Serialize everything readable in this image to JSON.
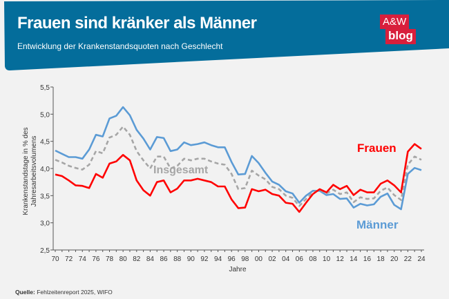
{
  "header": {
    "title": "Frauen sind kränker als Männer",
    "subtitle": "Entwicklung der Krankenstandsquoten nach Geschlecht",
    "logo_top": "A&W",
    "logo_bottom": "blog"
  },
  "footer": {
    "source_label": "Quelle:",
    "source_text": "Fehlzeitenreport 2025, WIFO"
  },
  "colors": {
    "banner": "#046d9b",
    "frauen": "#ff0000",
    "maenner": "#5b9bd5",
    "insgesamt": "#a6a6a6",
    "logo": "#d81f3c"
  },
  "chart_data": {
    "type": "line",
    "title": "Frauen sind kränker als Männer",
    "xlabel": "Jahre",
    "ylabel": [
      "Krankenstandstage in % des",
      "Jahresarbeitsvolumens"
    ],
    "ylim": [
      2.5,
      5.5
    ],
    "xlim": [
      1970,
      2024
    ],
    "yticks": [
      "2,5",
      "3,0",
      "3,5",
      "4,0",
      "4,5",
      "5,0",
      "5,5"
    ],
    "ytick_values": [
      2.5,
      3.0,
      3.5,
      4.0,
      4.5,
      5.0,
      5.5
    ],
    "xticks": [
      "70",
      "72",
      "74",
      "76",
      "78",
      "80",
      "82",
      "84",
      "86",
      "88",
      "90",
      "92",
      "94",
      "96",
      "98",
      "00",
      "02",
      "04",
      "06",
      "08",
      "10",
      "12",
      "14",
      "16",
      "18",
      "20",
      "22",
      "24"
    ],
    "x": [
      1970,
      1971,
      1972,
      1973,
      1974,
      1975,
      1976,
      1977,
      1978,
      1979,
      1980,
      1981,
      1982,
      1983,
      1984,
      1985,
      1986,
      1987,
      1988,
      1989,
      1990,
      1991,
      1992,
      1993,
      1994,
      1995,
      1996,
      1997,
      1998,
      1999,
      2000,
      2001,
      2002,
      2003,
      2004,
      2005,
      2006,
      2007,
      2008,
      2009,
      2010,
      2011,
      2012,
      2013,
      2014,
      2015,
      2016,
      2017,
      2018,
      2019,
      2020,
      2021,
      2022,
      2023,
      2024
    ],
    "series": [
      {
        "name": "Männer",
        "key": "maenner",
        "values": [
          4.33,
          4.27,
          4.21,
          4.21,
          4.18,
          4.35,
          4.62,
          4.59,
          4.92,
          4.97,
          5.13,
          4.98,
          4.71,
          4.55,
          4.35,
          4.58,
          4.56,
          4.32,
          4.35,
          4.48,
          4.43,
          4.45,
          4.48,
          4.43,
          4.39,
          4.39,
          4.12,
          3.89,
          3.9,
          4.23,
          4.1,
          3.92,
          3.76,
          3.7,
          3.58,
          3.54,
          3.37,
          3.5,
          3.59,
          3.59,
          3.51,
          3.53,
          3.44,
          3.45,
          3.28,
          3.35,
          3.32,
          3.34,
          3.48,
          3.54,
          3.33,
          3.25,
          3.9,
          4.01,
          3.97
        ]
      },
      {
        "name": "Insgesamt",
        "key": "insgesamt",
        "values": [
          4.16,
          4.11,
          4.05,
          4.01,
          3.98,
          4.07,
          4.32,
          4.28,
          4.57,
          4.62,
          4.77,
          4.62,
          4.32,
          4.15,
          4.0,
          4.22,
          4.22,
          4.0,
          4.05,
          4.18,
          4.15,
          4.18,
          4.18,
          4.13,
          4.09,
          4.07,
          3.9,
          3.62,
          3.64,
          3.96,
          3.87,
          3.8,
          3.66,
          3.62,
          3.5,
          3.46,
          3.31,
          3.44,
          3.56,
          3.61,
          3.54,
          3.61,
          3.53,
          3.56,
          3.38,
          3.47,
          3.44,
          3.45,
          3.59,
          3.65,
          3.51,
          3.42,
          4.07,
          4.22,
          4.16
        ]
      },
      {
        "name": "Frauen",
        "key": "frauen",
        "values": [
          3.89,
          3.86,
          3.78,
          3.69,
          3.68,
          3.64,
          3.9,
          3.83,
          4.09,
          4.13,
          4.25,
          4.15,
          3.78,
          3.6,
          3.5,
          3.75,
          3.78,
          3.56,
          3.63,
          3.78,
          3.78,
          3.81,
          3.78,
          3.75,
          3.67,
          3.67,
          3.43,
          3.27,
          3.28,
          3.62,
          3.58,
          3.61,
          3.53,
          3.5,
          3.37,
          3.35,
          3.2,
          3.37,
          3.53,
          3.62,
          3.56,
          3.7,
          3.62,
          3.68,
          3.51,
          3.61,
          3.56,
          3.56,
          3.72,
          3.78,
          3.69,
          3.56,
          4.31,
          4.45,
          4.36
        ]
      }
    ],
    "annotations": [
      "Frauen",
      "Männer",
      "Insgesamt"
    ],
    "grid": false,
    "legend": "inline labels"
  }
}
